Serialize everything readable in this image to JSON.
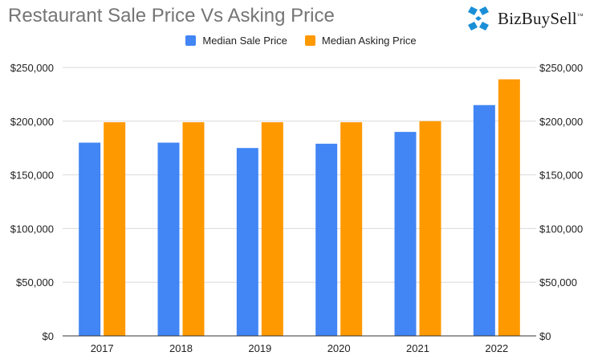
{
  "chart_data": {
    "type": "bar",
    "title": "Restaurant Sale Price Vs Asking Price",
    "categories": [
      "2017",
      "2018",
      "2019",
      "2020",
      "2021",
      "2022"
    ],
    "series": [
      {
        "name": "Median Sale Price",
        "color": "#4285f4",
        "values": [
          180000,
          180000,
          175000,
          179000,
          190000,
          215000
        ]
      },
      {
        "name": "Median Asking Price",
        "color": "#ff9900",
        "values": [
          199000,
          199000,
          199000,
          199000,
          200000,
          239000
        ]
      }
    ],
    "ylim": [
      0,
      250000
    ],
    "yticks": [
      0,
      50000,
      100000,
      150000,
      200000,
      250000
    ],
    "ytick_labels": [
      "$0",
      "$50,000",
      "$100,000",
      "$150,000",
      "$200,000",
      "$250,000"
    ],
    "grid": true,
    "legend": "top-center",
    "xlabel": "",
    "ylabel": ""
  },
  "brand": {
    "name": "BizBuySell",
    "trademark": "™",
    "color": "#1a8fd8"
  }
}
